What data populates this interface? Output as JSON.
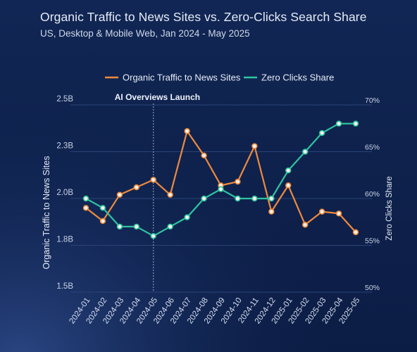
{
  "title": "Organic Traffic to News Sites vs. Zero-Clicks Search Share",
  "subtitle": "US, Desktop & Mobile Web, Jan 2024 - May 2025",
  "colors": {
    "traffic": "#ef8a3c",
    "zero_clicks": "#2ec4a0",
    "text": "#e6ecf7",
    "grid": "#2a4477"
  },
  "chart_data": {
    "type": "line",
    "categories": [
      "2024-01",
      "2024-02",
      "2024-03",
      "2024-04",
      "2024-05",
      "2024-06",
      "2024-07",
      "2024-08",
      "2024-09",
      "2024-10",
      "2024-11",
      "2024-12",
      "2025-01",
      "2025-02",
      "2025-03",
      "2025-04",
      "2025-05"
    ],
    "series": [
      {
        "name": "Organic Traffic to News Sites",
        "axis": "left",
        "color": "#ef8a3c",
        "values": [
          1.95,
          1.88,
          2.02,
          2.06,
          2.1,
          2.02,
          2.36,
          2.23,
          2.07,
          2.09,
          2.28,
          1.93,
          2.07,
          1.86,
          1.93,
          1.92,
          1.82
        ]
      },
      {
        "name": "Zero Clicks Share",
        "axis": "right",
        "color": "#2ec4a0",
        "values": [
          60,
          59,
          57,
          57,
          56,
          57,
          58,
          60,
          61,
          60,
          60,
          60,
          63,
          65,
          67,
          68,
          68
        ]
      }
    ],
    "left_axis": {
      "label": "Organic Traffic to News Sites",
      "range": [
        1.5,
        2.5
      ],
      "ticks": [
        1.5,
        1.75,
        2.0,
        2.25,
        2.5
      ],
      "tick_labels": [
        "1.5B",
        "1.8B",
        "2.0B",
        "2.3B",
        "2.5B"
      ]
    },
    "right_axis": {
      "label": "Zero Clicks Share",
      "range": [
        50,
        70
      ],
      "ticks": [
        50,
        55,
        60,
        65,
        70
      ],
      "tick_labels": [
        "50%",
        "55%",
        "60%",
        "65%",
        "70%"
      ]
    },
    "annotations": [
      {
        "text": "AI Overviews Launch",
        "at": "2024-05",
        "style": "vertical-line"
      }
    ],
    "legend": {
      "placement": "top-center",
      "entries": [
        "Organic Traffic to News Sites",
        "Zero Clicks Share"
      ]
    },
    "grid": "horizontal"
  }
}
